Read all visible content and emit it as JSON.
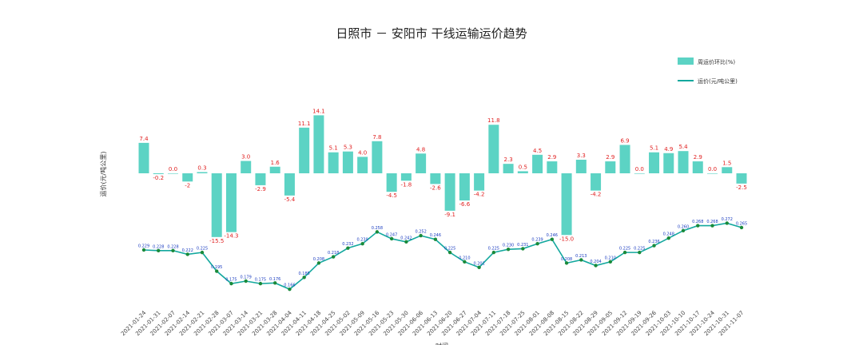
{
  "chart_data": {
    "type": "bar+line",
    "title": "日照市 － 安阳市 干线运输运价趋势",
    "xlabel": "时间",
    "ylabel": "运价(元/吨公里)",
    "legend": [
      "周运价环比(%)",
      "运价(元/吨公里)"
    ],
    "legend_position": "top-right",
    "grid": false,
    "colors": {
      "bar": "#5cd3c4",
      "line": "#13a89e",
      "line_marker": "#1a8a3a",
      "bar_label": "#e02020",
      "line_label": "#1a3cc0"
    },
    "categories": [
      "2021-01-24",
      "2021-01-31",
      "2021-02-07",
      "2021-02-14",
      "2021-02-21",
      "2021-02-28",
      "2021-03-07",
      "2021-03-14",
      "2021-03-21",
      "2021-03-28",
      "2021-04-04",
      "2021-04-11",
      "2021-04-18",
      "2021-04-25",
      "2021-05-02",
      "2021-05-09",
      "2021-05-16",
      "2021-05-23",
      "2021-05-30",
      "2021-06-06",
      "2021-06-13",
      "2021-06-20",
      "2021-06-27",
      "2021-07-04",
      "2021-07-11",
      "2021-07-18",
      "2021-07-25",
      "2021-08-01",
      "2021-08-08",
      "2021-08-15",
      "2021-08-22",
      "2021-08-29",
      "2021-09-05",
      "2021-09-12",
      "2021-09-19",
      "2021-09-26",
      "2021-10-03",
      "2021-10-10",
      "2021-10-17",
      "2021-10-24",
      "2021-10-31",
      "2021-11-07"
    ],
    "bar_labels": [
      "7.4",
      "-0.2",
      "0.0",
      "-2",
      "0.3",
      "-15.5",
      "-14.3",
      "3.0",
      "-2.9",
      "1.6",
      "-5.4",
      "11.1",
      "14.1",
      "5.1",
      "5.3",
      "4.0",
      "7.8",
      "-4.5",
      "-1.8",
      "4.8",
      "-2.6",
      "-9.1",
      "-6.6",
      "-4.2",
      "11.8",
      "2.3",
      "0.5",
      "4.5",
      "2.9",
      "-15.0",
      "3.3",
      "-4.2",
      "2.9",
      "6.9",
      "0.0",
      "5.1",
      "4.9",
      "5.4",
      "2.9",
      "0.0",
      "1.5",
      "-2.5"
    ],
    "bar_values": [
      7.4,
      -0.2,
      0.0,
      -2.0,
      0.3,
      -15.5,
      -14.3,
      3.0,
      -2.9,
      1.6,
      -5.4,
      11.1,
      14.1,
      5.1,
      5.3,
      4.0,
      7.8,
      -4.5,
      -1.8,
      4.8,
      -2.6,
      -9.1,
      -6.6,
      -4.2,
      11.8,
      2.3,
      0.5,
      4.5,
      2.9,
      -15.0,
      3.3,
      -4.2,
      2.9,
      6.9,
      0.0,
      5.1,
      4.9,
      5.4,
      2.9,
      0.0,
      1.5,
      -2.5
    ],
    "line_values": [
      0.229,
      0.228,
      0.228,
      0.222,
      0.225,
      0.195,
      0.175,
      0.179,
      0.175,
      0.176,
      0.166,
      0.185,
      0.208,
      0.218,
      0.232,
      0.239,
      0.258,
      0.247,
      0.242,
      0.252,
      0.246,
      0.225,
      0.21,
      0.201,
      0.225,
      0.23,
      0.231,
      0.239,
      0.246,
      0.208,
      0.213,
      0.204,
      0.21,
      0.225,
      0.225,
      0.236,
      0.248,
      0.26,
      0.268,
      0.268,
      0.272,
      0.265
    ],
    "line_labels": [
      "0.229",
      "0.228",
      "0.228",
      "0.222",
      "0.225",
      "0.195",
      "0.175",
      "0.179",
      "0.175",
      "0.176",
      "0.166",
      "0.185",
      "0.208",
      "0.218",
      "0.232",
      "0.239",
      "0.258",
      "0.247",
      "0.242",
      "0.252",
      "0.246",
      "0.225",
      "0.210",
      "0.201",
      "0.225",
      "0.230",
      "0.231",
      "0.239",
      "0.246",
      "0.208",
      "0.213",
      "0.204",
      "0.210",
      "0.225",
      "0.225",
      "0.236",
      "0.248",
      "0.260",
      "0.268",
      "0.268",
      "0.272",
      "0.265"
    ]
  }
}
